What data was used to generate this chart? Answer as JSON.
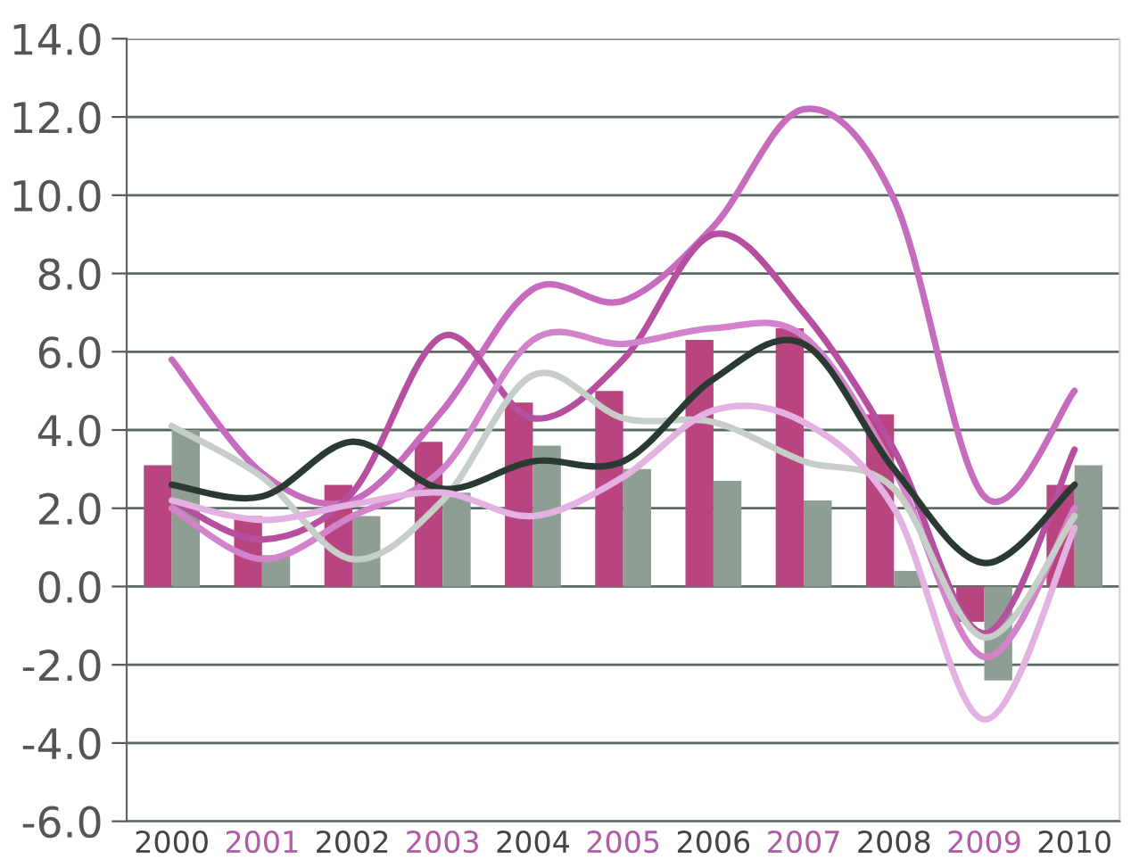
{
  "chart_data": {
    "type": "bar",
    "categories": [
      "2000",
      "2001",
      "2002",
      "2003",
      "2004",
      "2005",
      "2006",
      "2007",
      "2008",
      "2009",
      "2010"
    ],
    "series": [
      {
        "color": "#b8457f",
        "values": [
          3.1,
          1.8,
          2.6,
          3.7,
          4.7,
          5.0,
          6.3,
          6.6,
          4.4,
          -0.9,
          2.6
        ]
      },
      {
        "color": "#8f9e92",
        "values": [
          4.0,
          0.8,
          1.8,
          2.4,
          3.6,
          3.0,
          2.7,
          2.2,
          0.4,
          -2.4,
          3.1
        ]
      },
      {
        "type": "line",
        "color": "#c66bbd",
        "values": [
          5.8,
          2.9,
          2.2,
          4.5,
          7.6,
          7.3,
          9.2,
          12.2,
          9.9,
          2.3,
          5.0
        ]
      },
      {
        "type": "line",
        "color": "#b64fa0",
        "values": [
          2.2,
          1.2,
          2.4,
          6.4,
          4.3,
          5.8,
          9.0,
          7.0,
          3.5,
          -1.2,
          3.5
        ]
      },
      {
        "type": "line",
        "color": "#d383cc",
        "values": [
          2.0,
          0.7,
          1.8,
          3.0,
          6.3,
          6.2,
          6.6,
          6.4,
          3.0,
          -1.8,
          2.0
        ]
      },
      {
        "type": "line",
        "color": "#c6cec8",
        "values": [
          4.1,
          2.8,
          0.7,
          2.2,
          5.4,
          4.3,
          4.2,
          3.2,
          2.5,
          -1.3,
          1.8
        ]
      },
      {
        "type": "line",
        "color": "#2a3a32",
        "values": [
          2.6,
          2.3,
          3.7,
          2.5,
          3.2,
          3.2,
          5.3,
          6.2,
          3.0,
          0.6,
          2.6
        ]
      },
      {
        "type": "line",
        "color": "#e4b2e2",
        "values": [
          2.2,
          1.7,
          2.1,
          2.4,
          1.8,
          2.8,
          4.5,
          4.2,
          2.0,
          -3.4,
          1.5
        ]
      }
    ],
    "ylim": [
      -6,
      14
    ],
    "yticks": [
      {
        "value": -6,
        "label": "-6.0"
      },
      {
        "value": -4,
        "label": "-4.0"
      },
      {
        "value": -2,
        "label": "-2.0"
      },
      {
        "value": 0,
        "label": "0.0"
      },
      {
        "value": 2,
        "label": "2.0"
      },
      {
        "value": 4,
        "label": "4.0"
      },
      {
        "value": 6,
        "label": "6.0"
      },
      {
        "value": 8,
        "label": "8.0"
      },
      {
        "value": 10,
        "label": "10.0"
      },
      {
        "value": 12,
        "label": "12.0"
      },
      {
        "value": 14,
        "label": "14.0"
      }
    ],
    "grid": "y"
  }
}
